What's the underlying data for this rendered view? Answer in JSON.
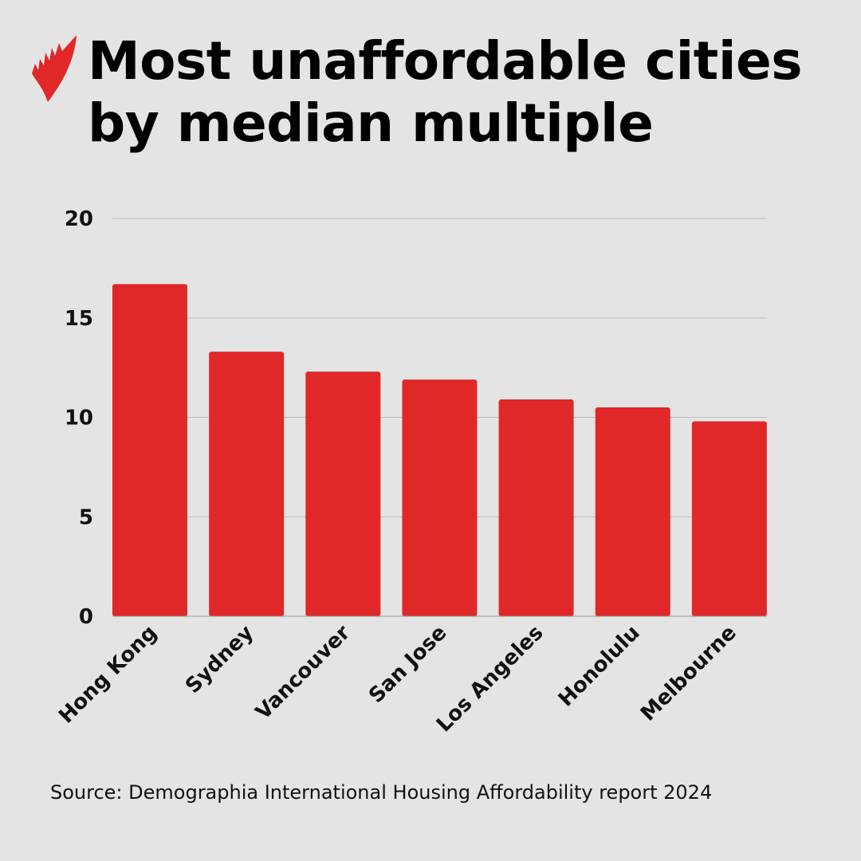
{
  "header": {
    "title_line1": "Most unaffordable cities",
    "title_line2": "by median multiple",
    "logo": "sbs-logo"
  },
  "colors": {
    "bar": "#e12828",
    "background": "#e4e4e4",
    "grid": "#bdbdbd"
  },
  "chart_data": {
    "type": "bar",
    "title": "Most unaffordable cities by median multiple",
    "xlabel": "",
    "ylabel": "",
    "categories": [
      "Hong Kong",
      "Sydney",
      "Vancouver",
      "San Jose",
      "Los Angeles",
      "Honolulu",
      "Melbourne"
    ],
    "values": [
      16.7,
      13.3,
      12.3,
      11.9,
      10.9,
      10.5,
      9.8
    ],
    "ylim": [
      0,
      20
    ],
    "yticks": [
      0,
      5,
      10,
      15,
      20
    ],
    "grid": true,
    "legend": "none"
  },
  "footer": {
    "source": "Source: Demographia International Housing Affordability report 2024"
  }
}
